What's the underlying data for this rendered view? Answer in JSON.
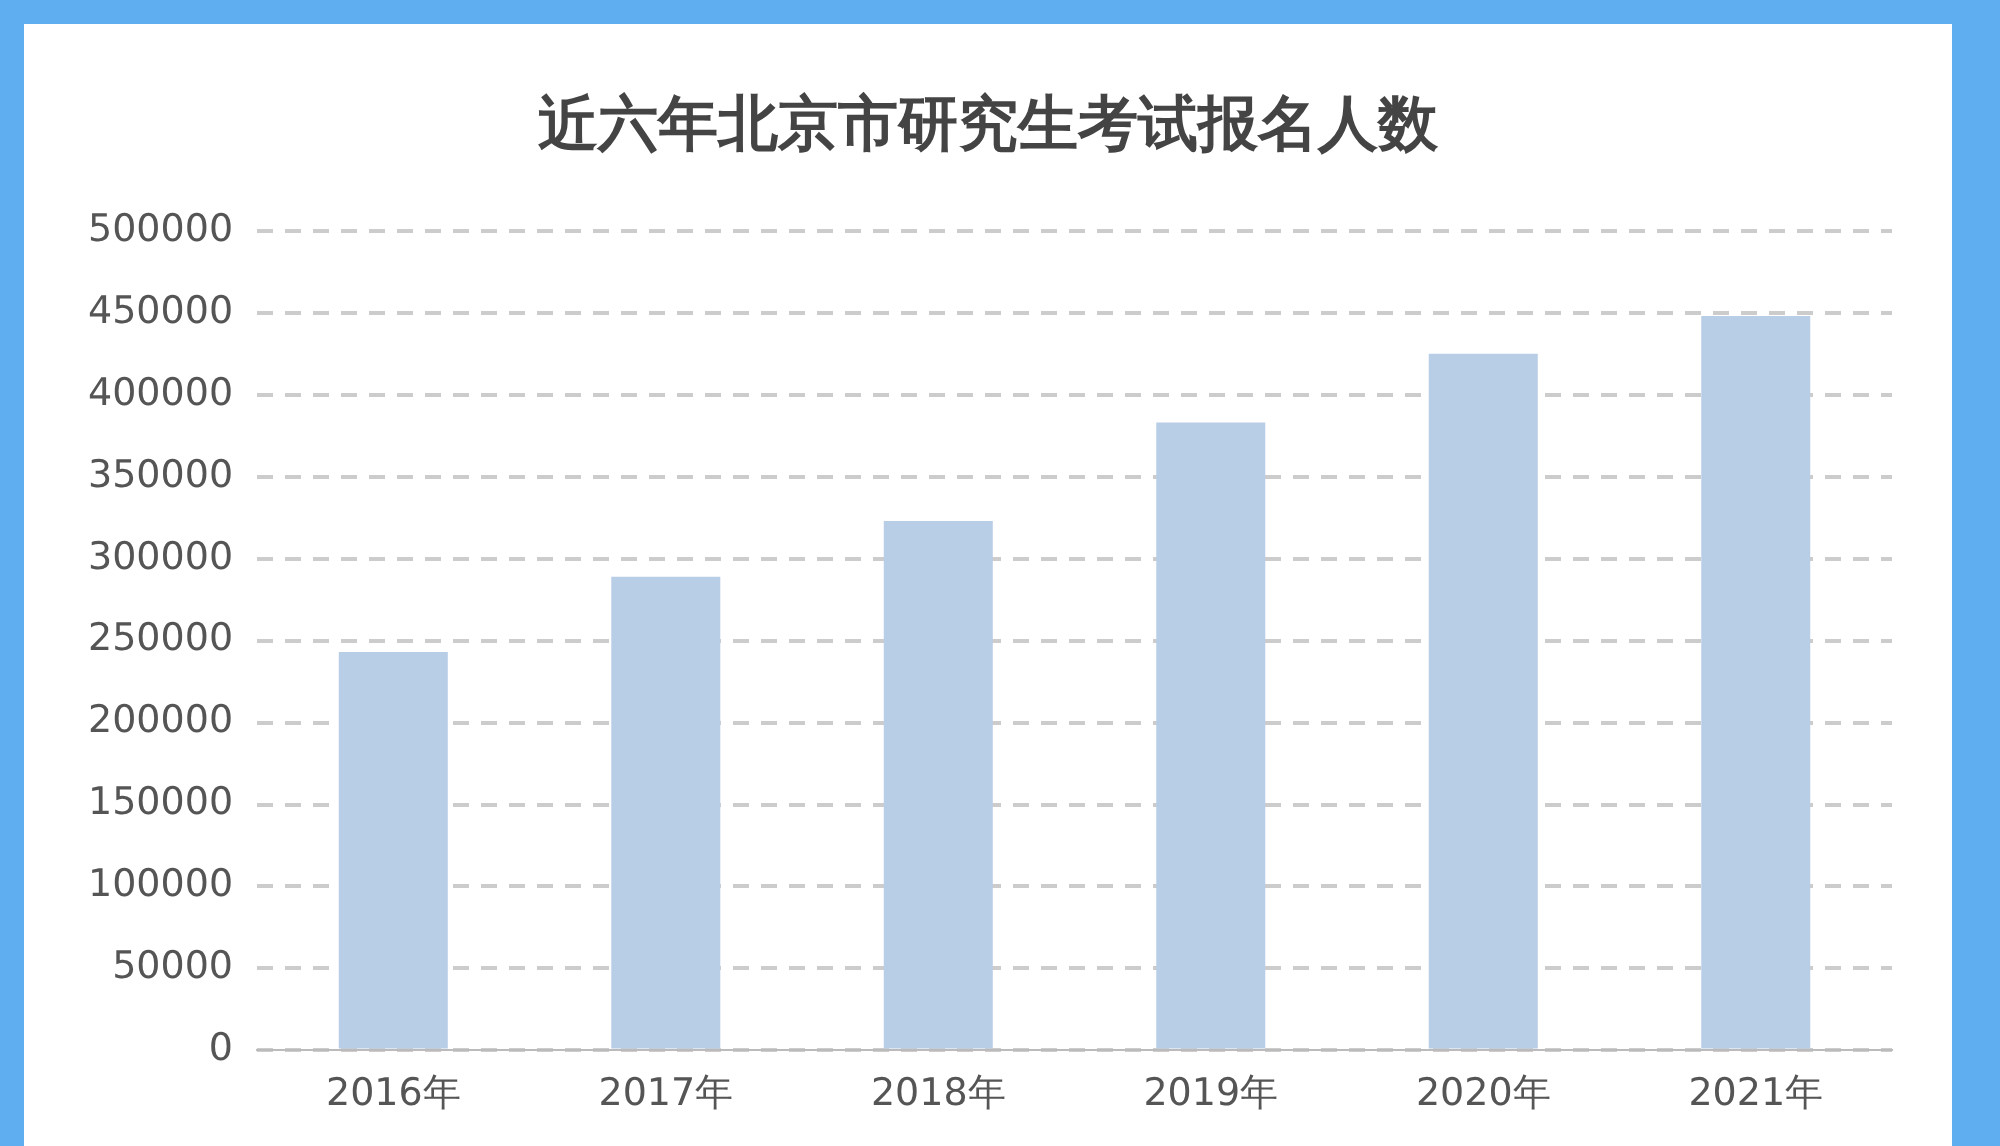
{
  "chart_data": {
    "type": "bar",
    "title": "近六年北京市研究生考试报名人数",
    "categories": [
      "2016年",
      "2017年",
      "2018年",
      "2019年",
      "2020年",
      "2021年"
    ],
    "values": [
      243000,
      289000,
      323000,
      383000,
      425000,
      448000
    ],
    "color": "#b8cde6",
    "ylim": [
      0,
      500000
    ],
    "yticks": [
      0,
      50000,
      100000,
      150000,
      200000,
      250000,
      300000,
      350000,
      400000,
      450000,
      500000
    ],
    "grid": "y",
    "legend": false
  }
}
